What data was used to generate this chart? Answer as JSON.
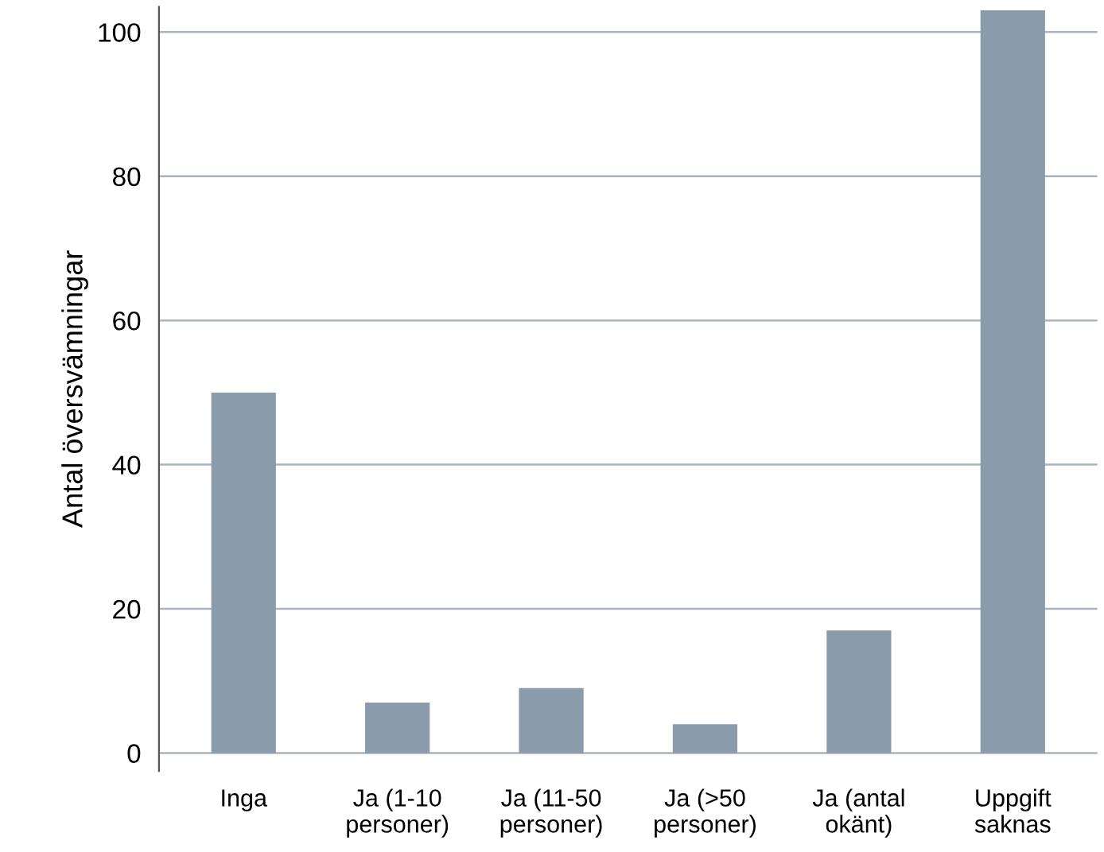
{
  "chart_data": {
    "type": "bar",
    "ylabel": "Antal översvämningar",
    "categories": [
      "Inga",
      "Ja (1-10\npersoner)",
      "Ja (11-50\npersoner)",
      "Ja (>50\npersoner)",
      "Ja (antal\nokänt)",
      "Uppgift\nsaknas"
    ],
    "values": [
      50,
      7,
      9,
      4,
      17,
      103
    ],
    "color": "#8a9cac",
    "ylim": [
      -2.5,
      103.5
    ],
    "yticks": [
      0,
      20,
      40,
      60,
      80,
      100
    ],
    "grid": "y"
  }
}
